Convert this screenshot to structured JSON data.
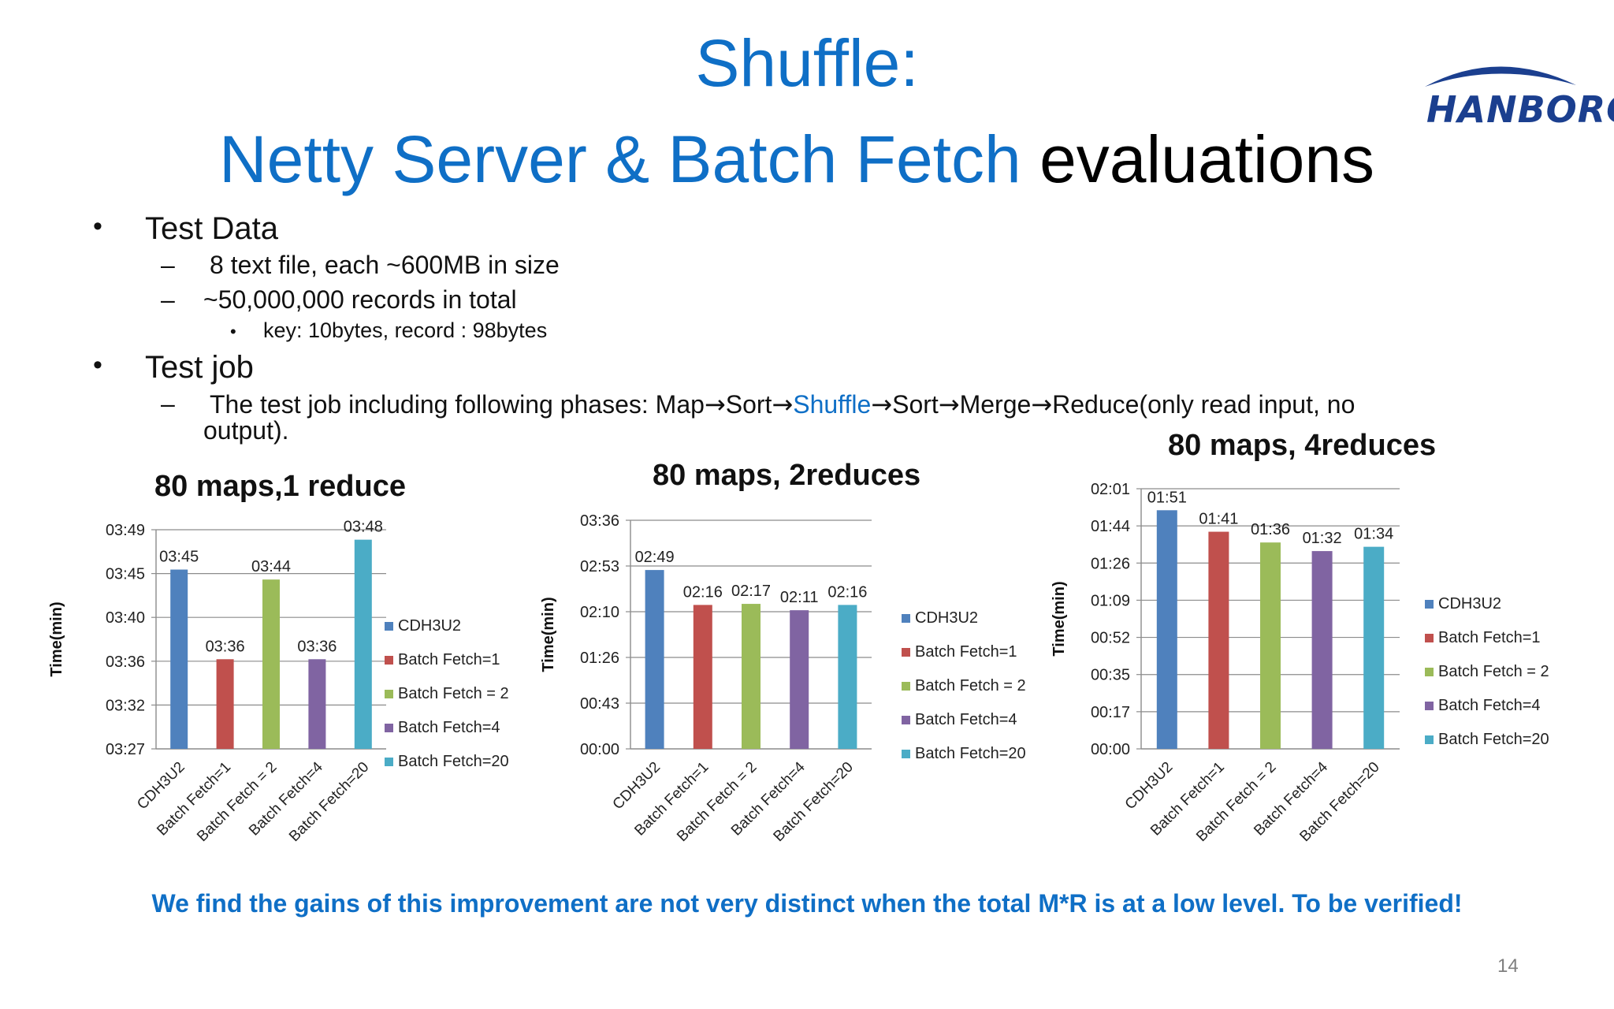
{
  "title": {
    "line1": "Shuffle:",
    "line2_blue": "Netty Server & Batch Fetch",
    "line2_black": "evaluations"
  },
  "logo": {
    "text": "HANBORQ"
  },
  "content": {
    "test_data": "Test Data",
    "td_item1": "8 text file, each ~600MB in size",
    "td_item2": "~50,000,000 records in total",
    "td_sub1": "key: 10bytes, record : 98bytes",
    "test_job": "Test job",
    "tj_prefix": "The test job including following phases: Map",
    "tj_sort1": "Sort",
    "tj_shuffle": "Shuffle",
    "tj_sort2": "Sort",
    "tj_merge": "Merge",
    "tj_reduce": "Reduce(only read input, no",
    "tj_line2": "output).",
    "arrow": "→"
  },
  "colors": {
    "CDH3U2": "#4f81bd",
    "Batch Fetch=1": "#c0504d",
    "Batch Fetch = 2": "#9bbb59",
    "Batch Fetch=4": "#8064a2",
    "Batch Fetch=20": "#4bacc6",
    "title_blue": "#0f6fc6"
  },
  "chart_data": [
    {
      "type": "bar",
      "title": "80 maps,1 reduce",
      "ylabel": "Time(min)",
      "categories": [
        "CDH3U2",
        "Batch Fetch=1",
        "Batch Fetch = 2",
        "Batch Fetch=4",
        "Batch Fetch=20"
      ],
      "values": [
        225,
        216,
        224,
        216,
        228
      ],
      "value_labels": [
        "03:45",
        "03:36",
        "03:44",
        "03:36",
        "03:48"
      ],
      "yticks": [
        "03:27",
        "03:32",
        "03:36",
        "03:40",
        "03:45",
        "03:49"
      ],
      "ylim": [
        207,
        229
      ],
      "legend": [
        "CDH3U2",
        "Batch Fetch=1",
        "Batch Fetch = 2",
        "Batch Fetch=4",
        "Batch Fetch=20"
      ],
      "legend_position": "right",
      "grid": true
    },
    {
      "type": "bar",
      "title": "80 maps, 2reduces",
      "ylabel": "Time(min)",
      "categories": [
        "CDH3U2",
        "Batch Fetch=1",
        "Batch Fetch = 2",
        "Batch Fetch=4",
        "Batch Fetch=20"
      ],
      "values": [
        169,
        136,
        137,
        131,
        136
      ],
      "value_labels": [
        "02:49",
        "02:16",
        "02:17",
        "02:11",
        "02:16"
      ],
      "yticks": [
        "00:00",
        "00:43",
        "01:26",
        "02:10",
        "02:53",
        "03:36"
      ],
      "ylim": [
        0,
        216
      ],
      "legend": [
        "CDH3U2",
        "Batch Fetch=1",
        "Batch Fetch = 2",
        "Batch Fetch=4",
        "Batch Fetch=20"
      ],
      "legend_position": "right",
      "grid": true
    },
    {
      "type": "bar",
      "title": "80 maps, 4reduces",
      "ylabel": "Time(min)",
      "categories": [
        "CDH3U2",
        "Batch Fetch=1",
        "Batch Fetch = 2",
        "Batch Fetch=4",
        "Batch Fetch=20"
      ],
      "values": [
        111,
        101,
        96,
        92,
        94
      ],
      "value_labels": [
        "01:51",
        "01:41",
        "01:36",
        "01:32",
        "01:34"
      ],
      "yticks": [
        "00:00",
        "00:17",
        "00:35",
        "00:52",
        "01:09",
        "01:26",
        "01:44",
        "02:01"
      ],
      "ylim": [
        0,
        121
      ],
      "legend": [
        "CDH3U2",
        "Batch Fetch=1",
        "Batch Fetch = 2",
        "Batch Fetch=4",
        "Batch Fetch=20"
      ],
      "legend_position": "right",
      "grid": true
    }
  ],
  "footer": "We find the gains of this improvement are not very distinct when the total M*R is at a low level.  To be verified!",
  "page_number": "14"
}
